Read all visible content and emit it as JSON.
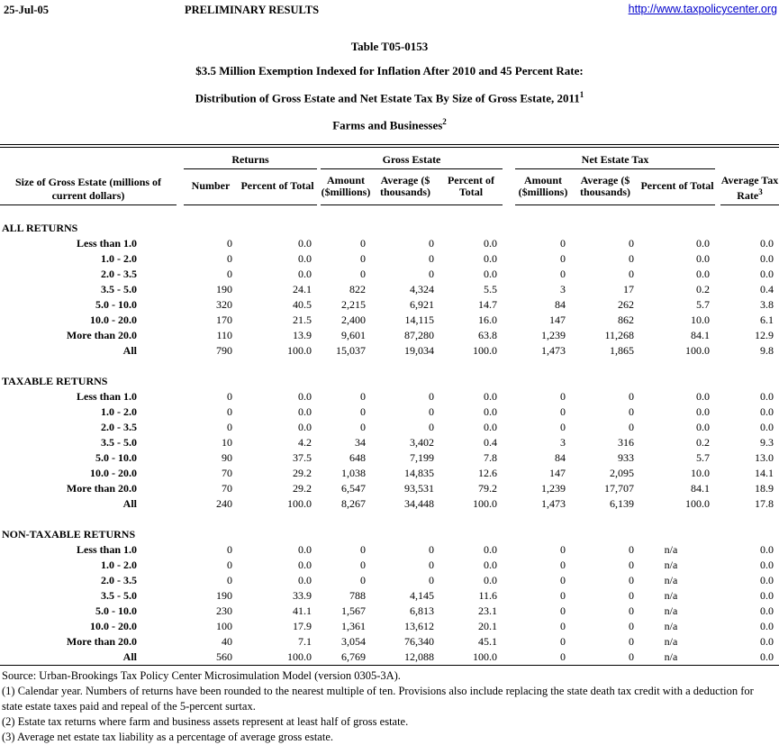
{
  "page_header": {
    "date": "25-Jul-05",
    "status": "PRELIMINARY RESULTS",
    "url": "http://www.taxpolicycenter.org",
    "link_color": "#0000cc"
  },
  "title_block": {
    "table_id": "Table T05-0153",
    "line1": "$3.5 Million Exemption Indexed for Inflation After 2010 and 45 Percent Rate:",
    "line2": "Distribution of Gross Estate and Net Estate Tax By Size of Gross Estate, 2011",
    "line2_superscript": "1",
    "line3": "Farms and Businesses",
    "line3_superscript": "2"
  },
  "table": {
    "row_header_label": "Size of Gross Estate (millions of current dollars)",
    "groups": [
      {
        "label": "Returns",
        "columns": [
          "Number",
          "Percent of Total"
        ]
      },
      {
        "label": "Gross Estate",
        "columns": [
          "Amount ($millions)",
          "Average ($ thousands)",
          "Percent of Total"
        ]
      },
      {
        "label": "Net Estate Tax",
        "columns": [
          "Amount ($millions)",
          "Average ($ thousands)",
          "Percent of Total"
        ]
      }
    ],
    "avg_tax_rate_label": "Average Tax Rate",
    "avg_tax_rate_superscript": "3",
    "sections": [
      {
        "label": "ALL RETURNS",
        "rows": [
          {
            "label": "Less than 1.0",
            "values": [
              "0",
              "0.0",
              "0",
              "0",
              "0.0",
              "0",
              "0",
              "0.0",
              "0.0"
            ]
          },
          {
            "label": "1.0 - 2.0",
            "values": [
              "0",
              "0.0",
              "0",
              "0",
              "0.0",
              "0",
              "0",
              "0.0",
              "0.0"
            ]
          },
          {
            "label": "2.0 - 3.5",
            "values": [
              "0",
              "0.0",
              "0",
              "0",
              "0.0",
              "0",
              "0",
              "0.0",
              "0.0"
            ]
          },
          {
            "label": "3.5 - 5.0",
            "values": [
              "190",
              "24.1",
              "822",
              "4,324",
              "5.5",
              "3",
              "17",
              "0.2",
              "0.4"
            ]
          },
          {
            "label": "5.0 - 10.0",
            "values": [
              "320",
              "40.5",
              "2,215",
              "6,921",
              "14.7",
              "84",
              "262",
              "5.7",
              "3.8"
            ]
          },
          {
            "label": "10.0 - 20.0",
            "values": [
              "170",
              "21.5",
              "2,400",
              "14,115",
              "16.0",
              "147",
              "862",
              "10.0",
              "6.1"
            ]
          },
          {
            "label": "More than 20.0",
            "values": [
              "110",
              "13.9",
              "9,601",
              "87,280",
              "63.8",
              "1,239",
              "11,268",
              "84.1",
              "12.9"
            ]
          },
          {
            "label": "All",
            "values": [
              "790",
              "100.0",
              "15,037",
              "19,034",
              "100.0",
              "1,473",
              "1,865",
              "100.0",
              "9.8"
            ]
          }
        ]
      },
      {
        "label": "TAXABLE RETURNS",
        "rows": [
          {
            "label": "Less than 1.0",
            "values": [
              "0",
              "0.0",
              "0",
              "0",
              "0.0",
              "0",
              "0",
              "0.0",
              "0.0"
            ]
          },
          {
            "label": "1.0 - 2.0",
            "values": [
              "0",
              "0.0",
              "0",
              "0",
              "0.0",
              "0",
              "0",
              "0.0",
              "0.0"
            ]
          },
          {
            "label": "2.0 - 3.5",
            "values": [
              "0",
              "0.0",
              "0",
              "0",
              "0.0",
              "0",
              "0",
              "0.0",
              "0.0"
            ]
          },
          {
            "label": "3.5 - 5.0",
            "values": [
              "10",
              "4.2",
              "34",
              "3,402",
              "0.4",
              "3",
              "316",
              "0.2",
              "9.3"
            ]
          },
          {
            "label": "5.0 - 10.0",
            "values": [
              "90",
              "37.5",
              "648",
              "7,199",
              "7.8",
              "84",
              "933",
              "5.7",
              "13.0"
            ]
          },
          {
            "label": "10.0 - 20.0",
            "values": [
              "70",
              "29.2",
              "1,038",
              "14,835",
              "12.6",
              "147",
              "2,095",
              "10.0",
              "14.1"
            ]
          },
          {
            "label": "More than 20.0",
            "values": [
              "70",
              "29.2",
              "6,547",
              "93,531",
              "79.2",
              "1,239",
              "17,707",
              "84.1",
              "18.9"
            ]
          },
          {
            "label": "All",
            "values": [
              "240",
              "100.0",
              "8,267",
              "34,448",
              "100.0",
              "1,473",
              "6,139",
              "100.0",
              "17.8"
            ]
          }
        ]
      },
      {
        "label": "NON-TAXABLE RETURNS",
        "rows": [
          {
            "label": "Less than 1.0",
            "values": [
              "0",
              "0.0",
              "0",
              "0",
              "0.0",
              "0",
              "0",
              "n/a",
              "0.0"
            ]
          },
          {
            "label": "1.0 - 2.0",
            "values": [
              "0",
              "0.0",
              "0",
              "0",
              "0.0",
              "0",
              "0",
              "n/a",
              "0.0"
            ]
          },
          {
            "label": "2.0 - 3.5",
            "values": [
              "0",
              "0.0",
              "0",
              "0",
              "0.0",
              "0",
              "0",
              "n/a",
              "0.0"
            ]
          },
          {
            "label": "3.5 - 5.0",
            "values": [
              "190",
              "33.9",
              "788",
              "4,145",
              "11.6",
              "0",
              "0",
              "n/a",
              "0.0"
            ]
          },
          {
            "label": "5.0 - 10.0",
            "values": [
              "230",
              "41.1",
              "1,567",
              "6,813",
              "23.1",
              "0",
              "0",
              "n/a",
              "0.0"
            ]
          },
          {
            "label": "10.0 - 20.0",
            "values": [
              "100",
              "17.9",
              "1,361",
              "13,612",
              "20.1",
              "0",
              "0",
              "n/a",
              "0.0"
            ]
          },
          {
            "label": "More than 20.0",
            "values": [
              "40",
              "7.1",
              "3,054",
              "76,340",
              "45.1",
              "0",
              "0",
              "n/a",
              "0.0"
            ]
          },
          {
            "label": "All",
            "values": [
              "560",
              "100.0",
              "6,769",
              "12,088",
              "100.0",
              "0",
              "0",
              "n/a",
              "0.0"
            ]
          }
        ]
      }
    ]
  },
  "notes": {
    "source": "Source: Urban-Brookings Tax Policy Center Microsimulation Model (version 0305-3A).",
    "note1": "(1) Calendar year. Numbers of returns have been rounded to the nearest multiple of ten. Provisions also include replacing the state death tax credit with a deduction for state estate taxes paid and repeal of the 5-percent surtax.",
    "note2": "(2) Estate tax returns where farm and business assets represent at least half of gross estate.",
    "note3": "(3) Average net estate tax liability as a percentage of average gross estate."
  }
}
